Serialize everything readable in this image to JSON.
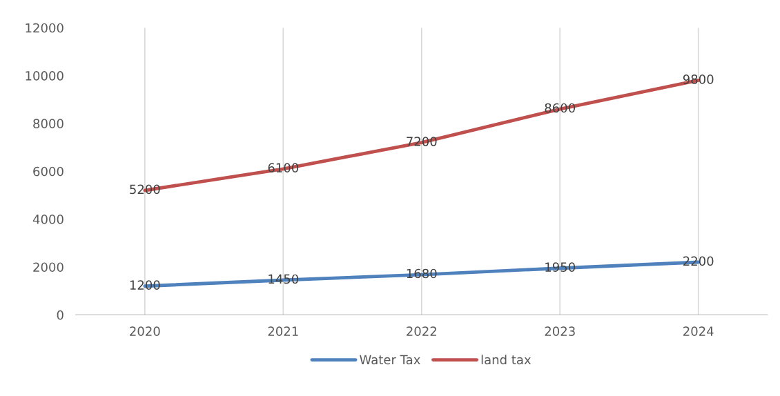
{
  "chart_data": {
    "type": "line",
    "categories": [
      "2020",
      "2021",
      "2022",
      "2023",
      "2024"
    ],
    "series": [
      {
        "name": "Water Tax",
        "color": "#4f81bd",
        "values": [
          1200,
          1450,
          1680,
          1950,
          2200
        ]
      },
      {
        "name": "land tax",
        "color": "#c0504d",
        "values": [
          5200,
          6100,
          7200,
          8600,
          9800
        ]
      }
    ],
    "ylim": [
      0,
      12000
    ],
    "yticks": [
      0,
      2000,
      4000,
      6000,
      8000,
      10000,
      12000
    ],
    "grid": "x",
    "legend": "bottom",
    "data_labels": true,
    "marker": "none",
    "line_style": "solid"
  }
}
